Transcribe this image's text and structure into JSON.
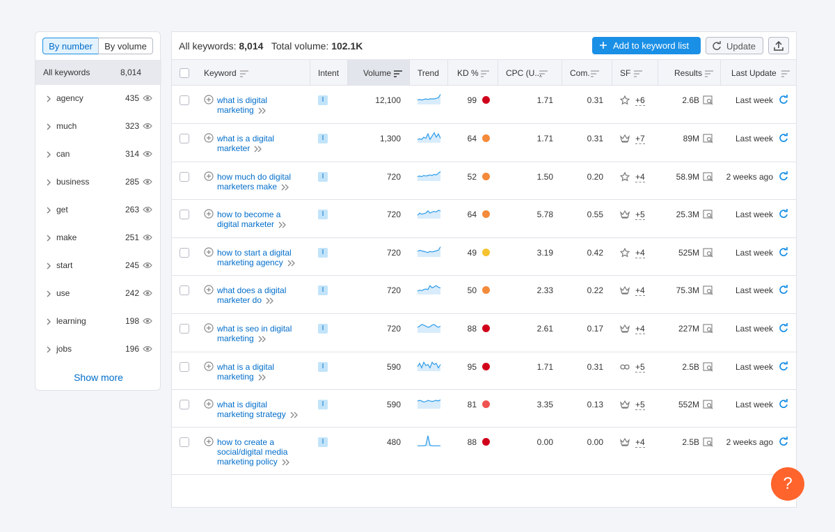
{
  "sidebar": {
    "tabs": [
      "By number",
      "By volume"
    ],
    "all": {
      "label": "All keywords",
      "count": "8,014"
    },
    "groups": [
      {
        "name": "agency",
        "count": 435
      },
      {
        "name": "much",
        "count": 323
      },
      {
        "name": "can",
        "count": 314
      },
      {
        "name": "business",
        "count": 285
      },
      {
        "name": "get",
        "count": 263
      },
      {
        "name": "make",
        "count": 251
      },
      {
        "name": "start",
        "count": 245
      },
      {
        "name": "use",
        "count": 242
      },
      {
        "name": "learning",
        "count": 198
      },
      {
        "name": "jobs",
        "count": 196
      }
    ],
    "show_more": "Show more"
  },
  "toolbar": {
    "all_keywords_label": "All keywords:",
    "all_keywords": "8,014",
    "total_volume_label": "Total volume:",
    "total_volume": "102.1K",
    "add_button": "Add to keyword list",
    "update_button": "Update"
  },
  "table": {
    "columns": [
      "Keyword",
      "Intent",
      "Volume",
      "Trend",
      "KD %",
      "CPC (U...",
      "Com.",
      "SF",
      "Results",
      "Last Update"
    ],
    "rows": [
      {
        "keyword": "what is digital marketing",
        "intent": "I",
        "volume": "12,100",
        "trend": [
          0.4,
          0.45,
          0.4,
          0.45,
          0.5,
          0.45,
          0.5,
          0.5,
          0.5,
          0.55,
          0.6,
          0.9
        ],
        "kd": 99,
        "kd_color": "#d0021b",
        "cpc": "1.71",
        "com": "0.31",
        "sf_icon": "star",
        "sf": "+6",
        "results": "2.6B",
        "last_update": "Last week"
      },
      {
        "keyword": "what is a digital marketer",
        "intent": "I",
        "volume": "1,300",
        "trend": [
          0.3,
          0.35,
          0.3,
          0.5,
          0.4,
          0.8,
          0.3,
          0.6,
          0.9,
          0.5,
          0.8,
          0.4
        ],
        "kd": 64,
        "kd_color": "#f48a3a",
        "cpc": "1.71",
        "com": "0.31",
        "sf_icon": "crown",
        "sf": "+7",
        "results": "89M",
        "last_update": "Last week"
      },
      {
        "keyword": "how much do digital marketers make",
        "intent": "I",
        "volume": "720",
        "trend": [
          0.4,
          0.45,
          0.4,
          0.5,
          0.45,
          0.5,
          0.55,
          0.5,
          0.6,
          0.55,
          0.7,
          0.85
        ],
        "kd": 52,
        "kd_color": "#f48a3a",
        "cpc": "1.50",
        "com": "0.20",
        "sf_icon": "star",
        "sf": "+4",
        "results": "58.9M",
        "last_update": "2 weeks ago"
      },
      {
        "keyword": "how to become a digital marketer",
        "intent": "I",
        "volume": "720",
        "trend": [
          0.3,
          0.5,
          0.4,
          0.45,
          0.5,
          0.7,
          0.5,
          0.6,
          0.65,
          0.6,
          0.75,
          0.7
        ],
        "kd": 64,
        "kd_color": "#f48a3a",
        "cpc": "5.78",
        "com": "0.55",
        "sf_icon": "crown",
        "sf": "+5",
        "results": "25.3M",
        "last_update": "Last week"
      },
      {
        "keyword": "how to start a digital marketing agency",
        "intent": "I",
        "volume": "720",
        "trend": [
          0.5,
          0.6,
          0.55,
          0.5,
          0.45,
          0.4,
          0.5,
          0.45,
          0.5,
          0.55,
          0.6,
          0.9
        ],
        "kd": 49,
        "kd_color": "#f5c330",
        "cpc": "3.19",
        "com": "0.42",
        "sf_icon": "star",
        "sf": "+4",
        "results": "525M",
        "last_update": "Last week"
      },
      {
        "keyword": "what does a digital marketer do",
        "intent": "I",
        "volume": "720",
        "trend": [
          0.3,
          0.4,
          0.35,
          0.45,
          0.5,
          0.45,
          0.8,
          0.6,
          0.7,
          0.8,
          0.65,
          0.6
        ],
        "kd": 50,
        "kd_color": "#f48a3a",
        "cpc": "2.33",
        "com": "0.22",
        "sf_icon": "crown",
        "sf": "+4",
        "results": "75.3M",
        "last_update": "Last week"
      },
      {
        "keyword": "what is seo in digital marketing",
        "intent": "I",
        "volume": "720",
        "trend": [
          0.5,
          0.6,
          0.75,
          0.7,
          0.6,
          0.5,
          0.55,
          0.7,
          0.75,
          0.6,
          0.5,
          0.6
        ],
        "kd": 88,
        "kd_color": "#d0021b",
        "cpc": "2.61",
        "com": "0.17",
        "sf_icon": "crown",
        "sf": "+4",
        "results": "227M",
        "last_update": "Last week"
      },
      {
        "keyword": "what is a digital marketing",
        "intent": "I",
        "volume": "590",
        "trend": [
          0.4,
          0.7,
          0.3,
          0.8,
          0.5,
          0.6,
          0.3,
          0.8,
          0.6,
          0.7,
          0.3,
          0.6
        ],
        "kd": 95,
        "kd_color": "#d0021b",
        "cpc": "1.71",
        "com": "0.31",
        "sf_icon": "link",
        "sf": "+5",
        "results": "2.5B",
        "last_update": "Last week"
      },
      {
        "keyword": "what is digital marketing strategy",
        "intent": "I",
        "volume": "590",
        "trend": [
          0.7,
          0.75,
          0.7,
          0.6,
          0.65,
          0.75,
          0.7,
          0.65,
          0.7,
          0.75,
          0.7,
          0.8
        ],
        "kd": 81,
        "kd_color": "#ef5350",
        "cpc": "3.35",
        "com": "0.13",
        "sf_icon": "crown",
        "sf": "+5",
        "results": "552M",
        "last_update": "Last week"
      },
      {
        "keyword": "how to create a social/digital media marketing policy",
        "intent": "I",
        "volume": "480",
        "trend": [
          0.05,
          0.05,
          0.05,
          0.05,
          0.1,
          0.95,
          0.1,
          0.05,
          0.05,
          0.05,
          0.05,
          0.05
        ],
        "kd": 88,
        "kd_color": "#d0021b",
        "cpc": "0.00",
        "com": "0.00",
        "sf_icon": "crown",
        "sf": "+4",
        "results": "2.5B",
        "last_update": "2 weeks ago"
      }
    ]
  },
  "help": "?"
}
